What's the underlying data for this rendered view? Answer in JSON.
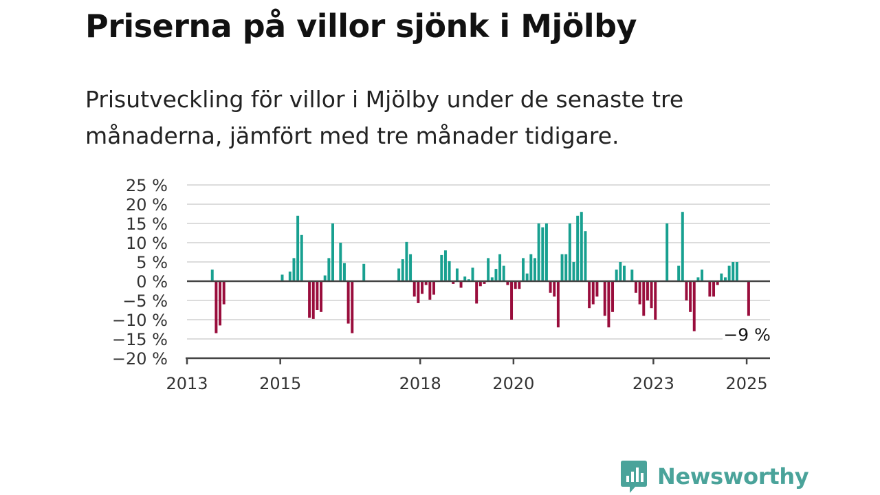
{
  "title": "Priserna på villor sjönk i Mjölby",
  "subtitle": "Prisutveckling för villor i Mjölby under de senaste tre månaderna, jämfört med tre månader tidigare.",
  "brand": {
    "name": "Newsworthy"
  },
  "colors": {
    "positive": "#18a090",
    "negative": "#990d3c",
    "grid": "#dcdcdc",
    "axis": "#444444"
  },
  "chart_data": {
    "type": "bar",
    "title": "",
    "xlabel": "",
    "ylabel": "",
    "ylim": [
      -20,
      25
    ],
    "y_ticks": [
      {
        "value": 25,
        "label": "25 %"
      },
      {
        "value": 20,
        "label": "20 %"
      },
      {
        "value": 15,
        "label": "15 %"
      },
      {
        "value": 10,
        "label": "10 %"
      },
      {
        "value": 5,
        "label": "5 %"
      },
      {
        "value": 0,
        "label": "0 %"
      },
      {
        "value": -5,
        "label": "−5 %"
      },
      {
        "value": -10,
        "label": "−10 %"
      },
      {
        "value": -15,
        "label": "−15 %"
      },
      {
        "value": -20,
        "label": "−20 %"
      }
    ],
    "x_range": [
      "2013-01",
      "2025-07"
    ],
    "x_ticks": [
      {
        "date": "2013-01",
        "label": "2013"
      },
      {
        "date": "2015-01",
        "label": "2015"
      },
      {
        "date": "2018-01",
        "label": "2018"
      },
      {
        "date": "2020-01",
        "label": "2020"
      },
      {
        "date": "2023-01",
        "label": "2023"
      },
      {
        "date": "2025-01",
        "label": "2025"
      }
    ],
    "last_value_label": "−9 %",
    "points": [
      {
        "date": "2013-07",
        "value": 3
      },
      {
        "date": "2013-08",
        "value": -13.5
      },
      {
        "date": "2013-09",
        "value": -11.5
      },
      {
        "date": "2013-10",
        "value": -6
      },
      {
        "date": "2015-01",
        "value": 1.7
      },
      {
        "date": "2015-03",
        "value": 2.5
      },
      {
        "date": "2015-04",
        "value": 6
      },
      {
        "date": "2015-05",
        "value": 17
      },
      {
        "date": "2015-06",
        "value": 12
      },
      {
        "date": "2015-08",
        "value": -9.5
      },
      {
        "date": "2015-09",
        "value": -9.8
      },
      {
        "date": "2015-10",
        "value": -7.5
      },
      {
        "date": "2015-11",
        "value": -8
      },
      {
        "date": "2015-12",
        "value": 1.5
      },
      {
        "date": "2016-01",
        "value": 6
      },
      {
        "date": "2016-02",
        "value": 15
      },
      {
        "date": "2016-04",
        "value": 10
      },
      {
        "date": "2016-05",
        "value": 4.7
      },
      {
        "date": "2016-06",
        "value": -11
      },
      {
        "date": "2016-07",
        "value": -13.5
      },
      {
        "date": "2016-10",
        "value": 4.5
      },
      {
        "date": "2017-07",
        "value": 3.3
      },
      {
        "date": "2017-08",
        "value": 5.7
      },
      {
        "date": "2017-09",
        "value": 10.2
      },
      {
        "date": "2017-10",
        "value": 7
      },
      {
        "date": "2017-11",
        "value": -4
      },
      {
        "date": "2017-12",
        "value": -5.7
      },
      {
        "date": "2018-01",
        "value": -3.3
      },
      {
        "date": "2018-02",
        "value": -1
      },
      {
        "date": "2018-03",
        "value": -4.8
      },
      {
        "date": "2018-04",
        "value": -3.5
      },
      {
        "date": "2018-06",
        "value": 6.8
      },
      {
        "date": "2018-07",
        "value": 8
      },
      {
        "date": "2018-08",
        "value": 5.2
      },
      {
        "date": "2018-09",
        "value": -0.7
      },
      {
        "date": "2018-10",
        "value": 3.3
      },
      {
        "date": "2018-11",
        "value": -1.7
      },
      {
        "date": "2018-12",
        "value": 1.2
      },
      {
        "date": "2019-01",
        "value": 0.5
      },
      {
        "date": "2019-02",
        "value": 3.5
      },
      {
        "date": "2019-03",
        "value": -5.8
      },
      {
        "date": "2019-04",
        "value": -1.3
      },
      {
        "date": "2019-05",
        "value": -0.7
      },
      {
        "date": "2019-06",
        "value": 6
      },
      {
        "date": "2019-07",
        "value": 1
      },
      {
        "date": "2019-08",
        "value": 3.2
      },
      {
        "date": "2019-09",
        "value": 7
      },
      {
        "date": "2019-10",
        "value": 4
      },
      {
        "date": "2019-11",
        "value": -1
      },
      {
        "date": "2019-12",
        "value": -10
      },
      {
        "date": "2020-01",
        "value": -2
      },
      {
        "date": "2020-02",
        "value": -2
      },
      {
        "date": "2020-03",
        "value": 6
      },
      {
        "date": "2020-04",
        "value": 2
      },
      {
        "date": "2020-05",
        "value": 7
      },
      {
        "date": "2020-06",
        "value": 6
      },
      {
        "date": "2020-07",
        "value": 15
      },
      {
        "date": "2020-08",
        "value": 14
      },
      {
        "date": "2020-09",
        "value": 15
      },
      {
        "date": "2020-10",
        "value": -3
      },
      {
        "date": "2020-11",
        "value": -4
      },
      {
        "date": "2020-12",
        "value": -12
      },
      {
        "date": "2021-01",
        "value": 7
      },
      {
        "date": "2021-02",
        "value": 7
      },
      {
        "date": "2021-03",
        "value": 15
      },
      {
        "date": "2021-04",
        "value": 5
      },
      {
        "date": "2021-05",
        "value": 17
      },
      {
        "date": "2021-06",
        "value": 18
      },
      {
        "date": "2021-07",
        "value": 13
      },
      {
        "date": "2021-08",
        "value": -7
      },
      {
        "date": "2021-09",
        "value": -6
      },
      {
        "date": "2021-10",
        "value": -4
      },
      {
        "date": "2021-12",
        "value": -9
      },
      {
        "date": "2022-01",
        "value": -12
      },
      {
        "date": "2022-02",
        "value": -8
      },
      {
        "date": "2022-03",
        "value": 3
      },
      {
        "date": "2022-04",
        "value": 5
      },
      {
        "date": "2022-05",
        "value": 4
      },
      {
        "date": "2022-07",
        "value": 3
      },
      {
        "date": "2022-08",
        "value": -3
      },
      {
        "date": "2022-09",
        "value": -6
      },
      {
        "date": "2022-10",
        "value": -9
      },
      {
        "date": "2022-11",
        "value": -5
      },
      {
        "date": "2022-12",
        "value": -7
      },
      {
        "date": "2023-01",
        "value": -10
      },
      {
        "date": "2023-04",
        "value": 15
      },
      {
        "date": "2023-07",
        "value": 4
      },
      {
        "date": "2023-08",
        "value": 18
      },
      {
        "date": "2023-09",
        "value": -5
      },
      {
        "date": "2023-10",
        "value": -8
      },
      {
        "date": "2023-11",
        "value": -13
      },
      {
        "date": "2023-12",
        "value": 1
      },
      {
        "date": "2024-01",
        "value": 3
      },
      {
        "date": "2024-03",
        "value": -4
      },
      {
        "date": "2024-04",
        "value": -4
      },
      {
        "date": "2024-05",
        "value": -1
      },
      {
        "date": "2024-06",
        "value": 2
      },
      {
        "date": "2024-07",
        "value": 1
      },
      {
        "date": "2024-08",
        "value": 4
      },
      {
        "date": "2024-09",
        "value": 5
      },
      {
        "date": "2024-10",
        "value": 5
      },
      {
        "date": "2025-01",
        "value": -9
      }
    ]
  }
}
